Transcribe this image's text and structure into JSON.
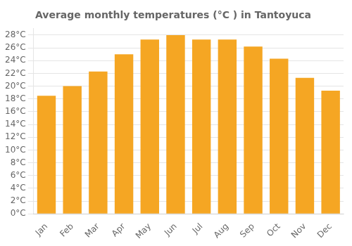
{
  "chart_data": {
    "type": "bar",
    "title": "Average monthly temperatures (°C ) in Tantoyuca",
    "categories": [
      "Jan",
      "Feb",
      "Mar",
      "Apr",
      "May",
      "Jun",
      "Jul",
      "Aug",
      "Sep",
      "Oct",
      "Nov",
      "Dec"
    ],
    "values": [
      18.5,
      20.0,
      22.3,
      25.0,
      27.3,
      28.0,
      27.3,
      27.3,
      26.2,
      24.3,
      21.3,
      19.3
    ],
    "color": "#F5A623",
    "ylim": [
      0,
      29
    ],
    "yticks": [
      {
        "value": 0,
        "label": "0°C"
      },
      {
        "value": 2,
        "label": "2°C"
      },
      {
        "value": 4,
        "label": "4°C"
      },
      {
        "value": 6,
        "label": "6°C"
      },
      {
        "value": 8,
        "label": "8°C"
      },
      {
        "value": 10,
        "label": "10°C"
      },
      {
        "value": 12,
        "label": "12°C"
      },
      {
        "value": 14,
        "label": "14°C"
      },
      {
        "value": 16,
        "label": "16°C"
      },
      {
        "value": 18,
        "label": "18°C"
      },
      {
        "value": 20,
        "label": "20°C"
      },
      {
        "value": 22,
        "label": "22°C"
      },
      {
        "value": 24,
        "label": "24°C"
      },
      {
        "value": 26,
        "label": "26°C"
      },
      {
        "value": 28,
        "label": "28°C"
      }
    ],
    "grid": true
  }
}
